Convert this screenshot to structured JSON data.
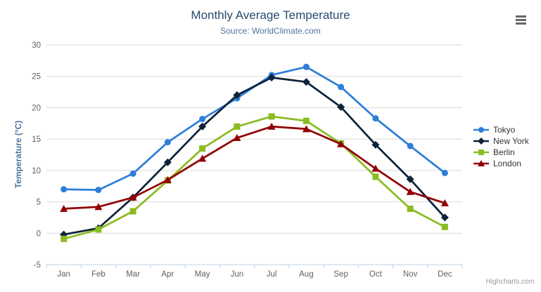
{
  "header": {
    "title": "Monthly Average Temperature",
    "subtitle": "Source: WorldClimate.com"
  },
  "credits": {
    "label": "Highcharts.com"
  },
  "context_menu": {
    "icon": "hamburger-icon"
  },
  "colors": {
    "title": "#274b6d",
    "subtitle": "#4d759e",
    "axis_labels": "#606060",
    "axis_line": "#c0d0e0",
    "gridline": "#d8d8d8",
    "legend_text": "#333333",
    "credits_text": "#999999",
    "background": "#ffffff"
  },
  "chart_data": {
    "type": "line",
    "title": "Monthly Average Temperature",
    "subtitle": "Source: WorldClimate.com",
    "xlabel": "",
    "ylabel": "Temperature (°C)",
    "categories": [
      "Jan",
      "Feb",
      "Mar",
      "Apr",
      "May",
      "Jun",
      "Jul",
      "Aug",
      "Sep",
      "Oct",
      "Nov",
      "Dec"
    ],
    "yticks": [
      -5,
      0,
      5,
      10,
      15,
      20,
      25,
      30
    ],
    "ylim": [
      -5,
      30
    ],
    "grid": true,
    "legend_position": "right",
    "series": [
      {
        "name": "Tokyo",
        "color": "#2f7ed8",
        "marker": "circle",
        "values": [
          7.0,
          6.9,
          9.5,
          14.5,
          18.2,
          21.5,
          25.2,
          26.5,
          23.3,
          18.3,
          13.9,
          9.6
        ]
      },
      {
        "name": "New York",
        "color": "#0d233a",
        "marker": "diamond",
        "values": [
          -0.2,
          0.8,
          5.7,
          11.3,
          17.0,
          22.0,
          24.8,
          24.1,
          20.1,
          14.1,
          8.6,
          2.5
        ]
      },
      {
        "name": "Berlin",
        "color": "#8bbc21",
        "marker": "square",
        "values": [
          -0.9,
          0.6,
          3.5,
          8.4,
          13.5,
          17.0,
          18.6,
          17.9,
          14.3,
          9.0,
          3.9,
          1.0
        ]
      },
      {
        "name": "London",
        "color": "#910000",
        "marker": "triangle",
        "values": [
          3.9,
          4.2,
          5.7,
          8.5,
          11.9,
          15.2,
          17.0,
          16.6,
          14.2,
          10.3,
          6.6,
          4.8
        ]
      }
    ]
  }
}
